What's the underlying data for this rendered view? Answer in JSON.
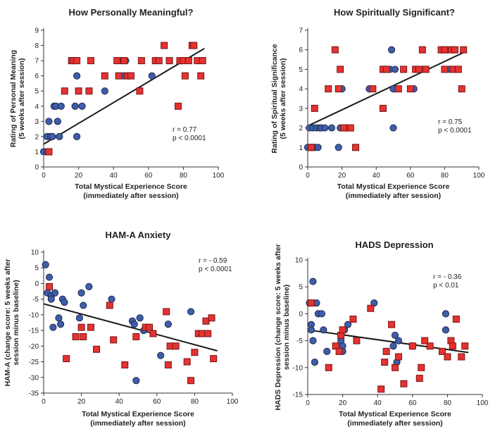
{
  "chart_data": [
    {
      "type": "scatter",
      "title": "How Personally Meaningful?",
      "xlabel": [
        "Total Mystical Experience Score",
        "(immediately after session)"
      ],
      "ylabel": [
        "Rating of Personal Meaning",
        "(5 weeks after session)"
      ],
      "xlim": [
        0,
        100
      ],
      "ylim": [
        0,
        9
      ],
      "xticks": [
        "0",
        "20",
        "40",
        "60",
        "80",
        "100"
      ],
      "yticks": [
        "0",
        "1",
        "2",
        "3",
        "4",
        "5",
        "6",
        "7",
        "8",
        "9"
      ],
      "stats": [
        "r = 0.77",
        "p < 0.0001"
      ],
      "fit": [
        [
          0,
          1.5
        ],
        [
          92,
          7.8
        ]
      ],
      "series": [
        {
          "marker": "circle",
          "color": "#3f5ea9",
          "points": [
            [
              0,
              1
            ],
            [
              2,
              1
            ],
            [
              2,
              2
            ],
            [
              3,
              3
            ],
            [
              4,
              2
            ],
            [
              5,
              2
            ],
            [
              6,
              4
            ],
            [
              7,
              4
            ],
            [
              8,
              3
            ],
            [
              9,
              2
            ],
            [
              10,
              4
            ],
            [
              18,
              4
            ],
            [
              19,
              2
            ],
            [
              19,
              6
            ],
            [
              22,
              4
            ],
            [
              35,
              5
            ],
            [
              45,
              7
            ],
            [
              46,
              6
            ],
            [
              47,
              7
            ],
            [
              49,
              6
            ],
            [
              62,
              6
            ],
            [
              79,
              7
            ]
          ]
        },
        {
          "marker": "square",
          "color": "#e53232",
          "points": [
            [
              3,
              1
            ],
            [
              12,
              5
            ],
            [
              16,
              7
            ],
            [
              17,
              7
            ],
            [
              19,
              7
            ],
            [
              20,
              5
            ],
            [
              26,
              5
            ],
            [
              27,
              7
            ],
            [
              35,
              6
            ],
            [
              42,
              7
            ],
            [
              43,
              6
            ],
            [
              46,
              7
            ],
            [
              48,
              6
            ],
            [
              50,
              6
            ],
            [
              55,
              5
            ],
            [
              56,
              7
            ],
            [
              64,
              7
            ],
            [
              66,
              7
            ],
            [
              69,
              8
            ],
            [
              72,
              7
            ],
            [
              77,
              4
            ],
            [
              78,
              7
            ],
            [
              80,
              7
            ],
            [
              81,
              6
            ],
            [
              83,
              7
            ],
            [
              85,
              8
            ],
            [
              86,
              8
            ],
            [
              88,
              7
            ],
            [
              90,
              6
            ],
            [
              91,
              7
            ]
          ]
        }
      ]
    },
    {
      "type": "scatter",
      "title": "How Spiritually Significant?",
      "xlabel": [
        "Total Mystical Experience Score",
        "(immediately after session)"
      ],
      "ylabel": [
        "Rating of Spiritual Significance",
        "(5 weeks after session)"
      ],
      "xlim": [
        0,
        100
      ],
      "ylim": [
        0,
        7
      ],
      "xticks": [
        "0",
        "20",
        "40",
        "60",
        "80",
        "100"
      ],
      "yticks": [
        "0",
        "1",
        "2",
        "3",
        "4",
        "5",
        "6",
        "7"
      ],
      "stats": [
        "r = 0.75",
        "p < 0.0001"
      ],
      "fit": [
        [
          0,
          2.1
        ],
        [
          92,
          5.9
        ]
      ],
      "series": [
        {
          "marker": "circle",
          "color": "#3f5ea9",
          "points": [
            [
              0,
              1
            ],
            [
              1,
              2
            ],
            [
              2,
              1
            ],
            [
              3,
              1
            ],
            [
              3,
              2
            ],
            [
              4,
              1
            ],
            [
              5,
              2
            ],
            [
              6,
              1
            ],
            [
              7,
              2
            ],
            [
              8,
              2
            ],
            [
              10,
              2
            ],
            [
              14,
              2
            ],
            [
              18,
              1
            ],
            [
              19,
              2
            ],
            [
              20,
              4
            ],
            [
              22,
              2
            ],
            [
              36,
              4
            ],
            [
              45,
              5
            ],
            [
              48,
              5
            ],
            [
              49,
              6
            ],
            [
              50,
              4
            ],
            [
              50,
              2
            ],
            [
              51,
              5
            ],
            [
              62,
              4
            ],
            [
              81,
              6
            ],
            [
              83,
              5
            ]
          ]
        },
        {
          "marker": "square",
          "color": "#e53232",
          "points": [
            [
              2,
              1
            ],
            [
              4,
              3
            ],
            [
              12,
              4
            ],
            [
              16,
              6
            ],
            [
              18,
              4
            ],
            [
              19,
              5
            ],
            [
              21,
              2
            ],
            [
              25,
              2
            ],
            [
              28,
              1
            ],
            [
              38,
              4
            ],
            [
              44,
              5
            ],
            [
              44,
              3
            ],
            [
              46,
              5
            ],
            [
              53,
              4
            ],
            [
              56,
              5
            ],
            [
              60,
              4
            ],
            [
              63,
              5
            ],
            [
              65,
              5
            ],
            [
              67,
              6
            ],
            [
              69,
              5
            ],
            [
              78,
              6
            ],
            [
              80,
              6
            ],
            [
              80,
              5
            ],
            [
              84,
              6
            ],
            [
              85,
              5
            ],
            [
              86,
              6
            ],
            [
              88,
              5
            ],
            [
              90,
              4
            ],
            [
              91,
              6
            ]
          ]
        }
      ]
    },
    {
      "type": "scatter",
      "title": "HAM-A Anxiety",
      "xlabel": [
        "Total Mystical Experience Score",
        "(immediately after session)"
      ],
      "ylabel": [
        "HAM-A (change score: 5 weeks after",
        "session minus baseline)"
      ],
      "xlim": [
        0,
        100
      ],
      "ylim": [
        -35,
        10
      ],
      "xticks": [
        "0",
        "20",
        "40",
        "60",
        "80",
        "100"
      ],
      "yticks": [
        "10",
        "5",
        "0",
        "-5",
        "-10",
        "-15",
        "-20",
        "-25",
        "-30",
        "-35"
      ],
      "stats": [
        "r = - 0.59",
        "p < 0.0001"
      ],
      "fit": [
        [
          0,
          -6.5
        ],
        [
          92,
          -21.5
        ]
      ],
      "series": [
        {
          "marker": "circle",
          "color": "#3f5ea9",
          "points": [
            [
              1,
              6
            ],
            [
              2,
              -3
            ],
            [
              3,
              2
            ],
            [
              4,
              -4
            ],
            [
              4,
              -5
            ],
            [
              5,
              -14
            ],
            [
              6,
              -3
            ],
            [
              8,
              -11
            ],
            [
              9,
              -13
            ],
            [
              10,
              -5
            ],
            [
              11,
              -6
            ],
            [
              19,
              -11
            ],
            [
              20,
              -3
            ],
            [
              21,
              -7
            ],
            [
              24,
              -1
            ],
            [
              36,
              -5
            ],
            [
              47,
              -12
            ],
            [
              48,
              -13
            ],
            [
              49,
              -31
            ],
            [
              51,
              -11
            ],
            [
              53,
              -15
            ],
            [
              62,
              -23
            ],
            [
              66,
              -13
            ],
            [
              78,
              -9
            ]
          ]
        },
        {
          "marker": "square",
          "color": "#e53232",
          "points": [
            [
              3,
              -1
            ],
            [
              12,
              -24
            ],
            [
              17,
              -17
            ],
            [
              20,
              -14
            ],
            [
              21,
              -17
            ],
            [
              25,
              -14
            ],
            [
              28,
              -21
            ],
            [
              35,
              -7
            ],
            [
              37,
              -18
            ],
            [
              43,
              -26
            ],
            [
              49,
              -17
            ],
            [
              54,
              -14
            ],
            [
              56,
              -14
            ],
            [
              58,
              -16
            ],
            [
              65,
              -9
            ],
            [
              66,
              -26
            ],
            [
              67,
              -20
            ],
            [
              70,
              -20
            ],
            [
              76,
              -25
            ],
            [
              78,
              -31
            ],
            [
              80,
              -22
            ],
            [
              82,
              -16
            ],
            [
              84,
              -16
            ],
            [
              86,
              -12
            ],
            [
              87,
              -16
            ],
            [
              89,
              -11
            ],
            [
              90,
              -24
            ]
          ]
        }
      ]
    },
    {
      "type": "scatter",
      "title": "HADS Depression",
      "xlabel": [
        "Total Mystical Experience Score",
        "(immediately after session)"
      ],
      "ylabel": [
        "HADS Depression (change score: 5 weeks after",
        "session minus baseline)"
      ],
      "xlim": [
        0,
        100
      ],
      "ylim": [
        -15,
        10
      ],
      "xticks": [
        "0",
        "20",
        "40",
        "60",
        "80",
        "100"
      ],
      "yticks": [
        "10",
        "5",
        "0",
        "-5",
        "-10",
        "-15"
      ],
      "stats": [
        "r = - 0.36",
        "p < 0.01"
      ],
      "fit": [
        [
          0,
          -3
        ],
        [
          92,
          -7.2
        ]
      ],
      "series": [
        {
          "marker": "circle",
          "color": "#3f5ea9",
          "points": [
            [
              1,
              2
            ],
            [
              2,
              -2
            ],
            [
              2,
              -3
            ],
            [
              3,
              6
            ],
            [
              3,
              -5
            ],
            [
              4,
              -9
            ],
            [
              5,
              2
            ],
            [
              6,
              0
            ],
            [
              8,
              0
            ],
            [
              9,
              -3
            ],
            [
              11,
              -7
            ],
            [
              19,
              -4
            ],
            [
              19,
              -5
            ],
            [
              20,
              -6
            ],
            [
              20,
              -7
            ],
            [
              21,
              -3
            ],
            [
              23,
              -2
            ],
            [
              38,
              2
            ],
            [
              49,
              -6
            ],
            [
              50,
              -4
            ],
            [
              51,
              -9
            ],
            [
              52,
              -5
            ],
            [
              60,
              -6
            ],
            [
              79,
              0
            ],
            [
              79,
              -3
            ]
          ]
        },
        {
          "marker": "square",
          "color": "#e53232",
          "points": [
            [
              2,
              2
            ],
            [
              12,
              -10
            ],
            [
              16,
              -6
            ],
            [
              18,
              -7
            ],
            [
              19,
              -4
            ],
            [
              20,
              -3
            ],
            [
              26,
              -1
            ],
            [
              28,
              -5
            ],
            [
              36,
              1
            ],
            [
              42,
              -14
            ],
            [
              44,
              -9
            ],
            [
              45,
              -7
            ],
            [
              48,
              -2
            ],
            [
              50,
              -10
            ],
            [
              52,
              -8
            ],
            [
              55,
              -13
            ],
            [
              60,
              -6
            ],
            [
              64,
              -12
            ],
            [
              65,
              -10
            ],
            [
              67,
              -5
            ],
            [
              70,
              -6
            ],
            [
              77,
              -7
            ],
            [
              80,
              -8
            ],
            [
              82,
              -5
            ],
            [
              83,
              -6
            ],
            [
              85,
              -1
            ],
            [
              88,
              -8
            ],
            [
              90,
              -6
            ]
          ]
        }
      ]
    }
  ]
}
